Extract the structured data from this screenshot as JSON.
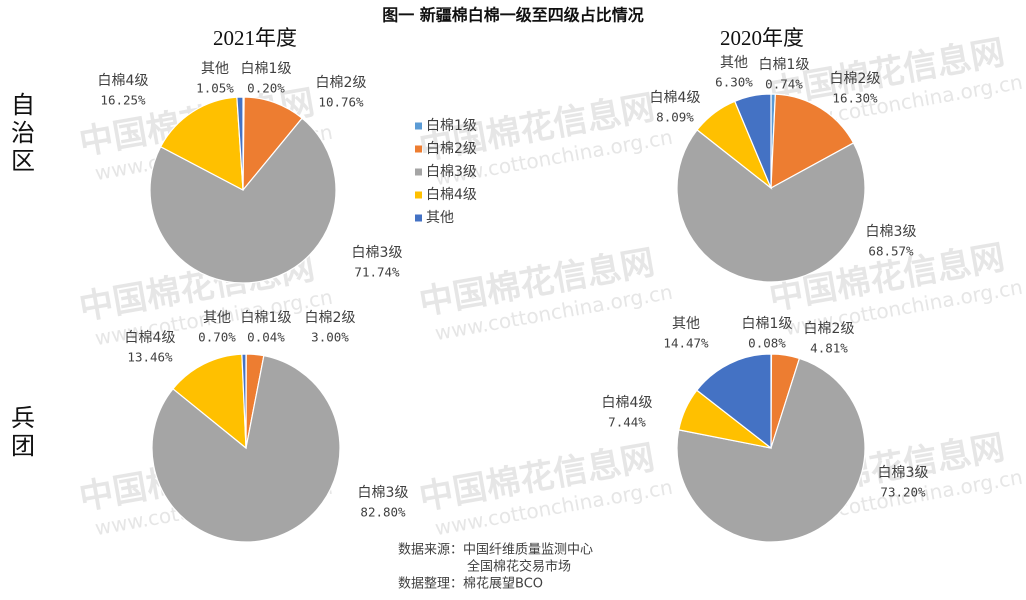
{
  "page": {
    "title": "图一 新疆棉白棉一级至四级占比情况",
    "column_titles": [
      "2021年度",
      "2020年度"
    ],
    "row_titles": [
      "自治区",
      "兵团"
    ],
    "source_lines": [
      "数据来源：中国纤维质量监测中心",
      "全国棉花交易市场",
      "数据整理：棉花展望BCO"
    ],
    "watermark": "中国棉花信息网",
    "watermark_url": "www.cottonchina.org.cn"
  },
  "chart_data": [
    {
      "type": "pie",
      "categories": [
        "白棉1级",
        "白棉2级",
        "白棉3级",
        "白棉4级",
        "其他"
      ],
      "colors": [
        "#5b9bd5",
        "#ed7d31",
        "#a5a5a5",
        "#ffc000",
        "#4472c4"
      ],
      "values": [
        0.2,
        10.76,
        71.74,
        16.25,
        1.05
      ],
      "value_labels": [
        "0.20%",
        "10.76%",
        "71.74%",
        "16.25%",
        "1.05%"
      ],
      "legend": true
    },
    {
      "type": "pie",
      "categories": [
        "白棉1级",
        "白棉2级",
        "白棉3级",
        "白棉4级",
        "其他"
      ],
      "colors": [
        "#5b9bd5",
        "#ed7d31",
        "#a5a5a5",
        "#ffc000",
        "#4472c4"
      ],
      "values": [
        0.74,
        16.3,
        68.57,
        8.09,
        6.3
      ],
      "value_labels": [
        "0.74%",
        "16.30%",
        "68.57%",
        "8.09%",
        "6.30%"
      ]
    },
    {
      "type": "pie",
      "categories": [
        "白棉1级",
        "白棉2级",
        "白棉3级",
        "白棉4级",
        "其他"
      ],
      "colors": [
        "#5b9bd5",
        "#ed7d31",
        "#a5a5a5",
        "#ffc000",
        "#4472c4"
      ],
      "values": [
        0.04,
        3.0,
        82.8,
        13.46,
        0.7
      ],
      "value_labels": [
        "0.04%",
        "3.00%",
        "82.80%",
        "13.46%",
        "0.70%"
      ]
    },
    {
      "type": "pie",
      "categories": [
        "白棉1级",
        "白棉2级",
        "白棉3级",
        "白棉4级",
        "其他"
      ],
      "colors": [
        "#5b9bd5",
        "#ed7d31",
        "#a5a5a5",
        "#ffc000",
        "#4472c4"
      ],
      "values": [
        0.08,
        4.81,
        73.2,
        7.44,
        14.47
      ],
      "value_labels": [
        "0.08%",
        "4.81%",
        "73.20%",
        "7.44%",
        "14.47%"
      ]
    }
  ]
}
